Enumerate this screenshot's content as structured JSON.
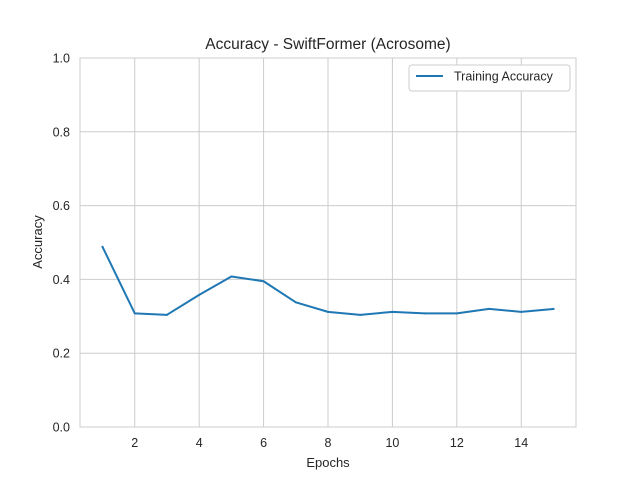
{
  "chart_data": {
    "type": "line",
    "title": "Accuracy - SwiftFormer (Acrosome)",
    "xlabel": "Epochs",
    "ylabel": "Accuracy",
    "xlim": [
      0.3,
      15.7
    ],
    "ylim": [
      0.0,
      1.0
    ],
    "xticks": [
      2,
      4,
      6,
      8,
      10,
      12,
      14
    ],
    "xtick_labels": [
      "2",
      "4",
      "6",
      "8",
      "10",
      "12",
      "14"
    ],
    "yticks": [
      0.0,
      0.2,
      0.4,
      0.6,
      0.8,
      1.0
    ],
    "ytick_labels": [
      "0.0",
      "0.2",
      "0.4",
      "0.6",
      "0.8",
      "1.0"
    ],
    "grid": true,
    "legend_position": "top-right",
    "series": [
      {
        "name": "Training Accuracy",
        "color": "#1f77b4",
        "x": [
          1,
          2,
          3,
          4,
          5,
          6,
          7,
          8,
          9,
          10,
          11,
          12,
          13,
          14,
          15
        ],
        "y": [
          0.488,
          0.308,
          0.304,
          0.358,
          0.408,
          0.395,
          0.338,
          0.312,
          0.304,
          0.312,
          0.308,
          0.308,
          0.32,
          0.312,
          0.32
        ]
      }
    ]
  }
}
